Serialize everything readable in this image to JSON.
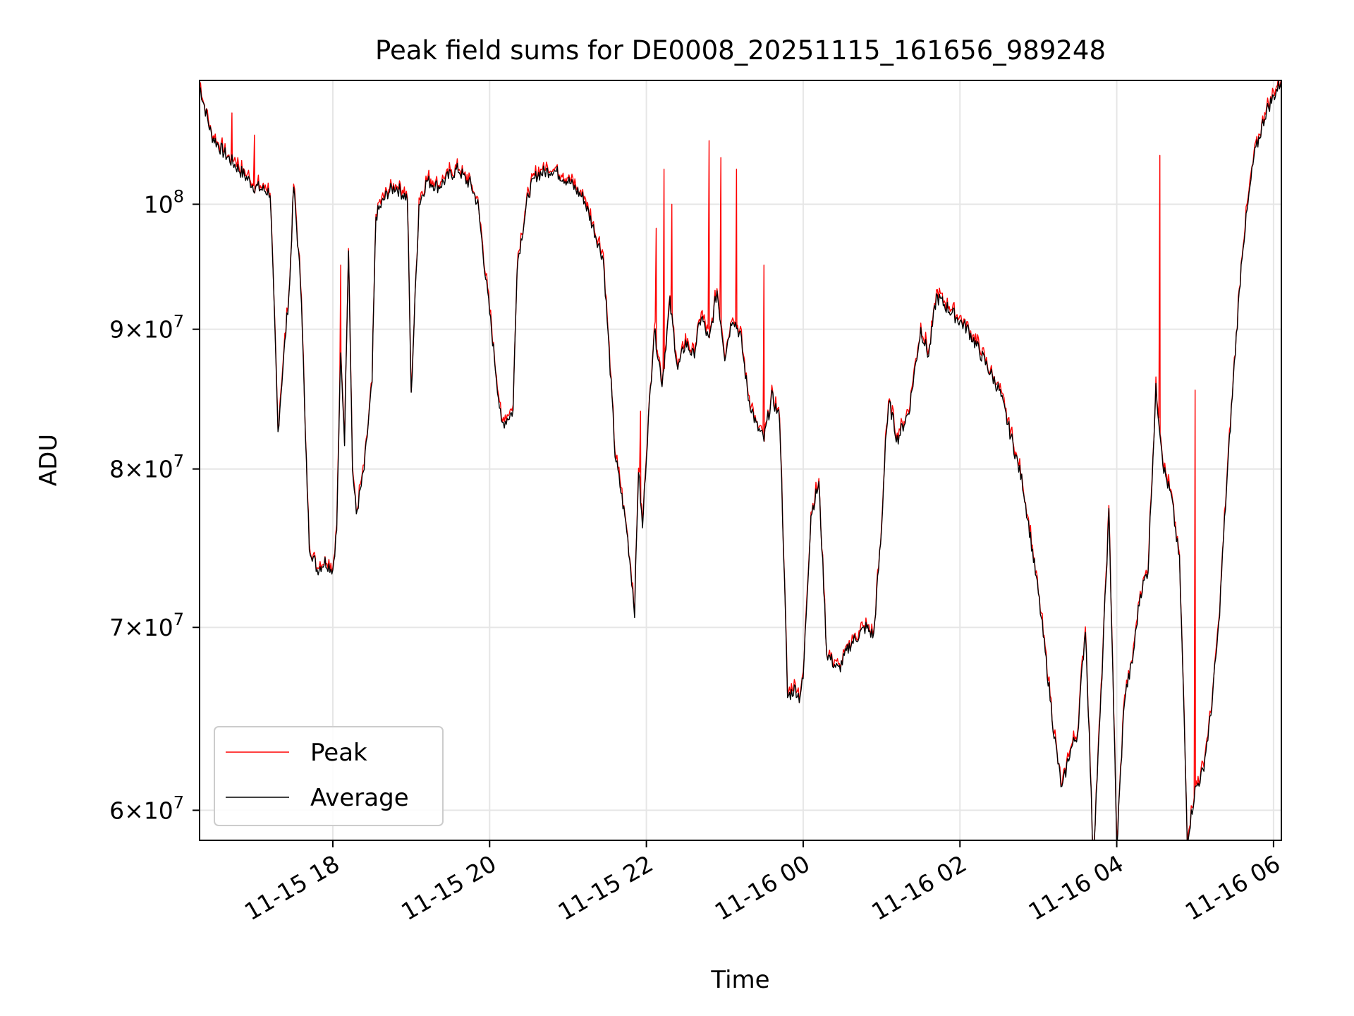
{
  "chart_data": {
    "type": "line",
    "title": "Peak field sums for DE0008_20251115_161656_989248",
    "xlabel": "Time",
    "ylabel": "ADU",
    "yscale": "log",
    "xlim_hours": [
      16.3,
      30.1
    ],
    "ylim": [
      58500000,
      111000000
    ],
    "x_ticks": [
      {
        "hours": 18,
        "label": "11-15 18"
      },
      {
        "hours": 20,
        "label": "11-15 20"
      },
      {
        "hours": 22,
        "label": "11-15 22"
      },
      {
        "hours": 24,
        "label": "11-16 00"
      },
      {
        "hours": 26,
        "label": "11-16 02"
      },
      {
        "hours": 28,
        "label": "11-16 04"
      },
      {
        "hours": 30,
        "label": "11-16 06"
      }
    ],
    "y_ticks": [
      {
        "value": 60000000,
        "coef": "6",
        "exp": "7"
      },
      {
        "value": 70000000,
        "coef": "7",
        "exp": "7"
      },
      {
        "value": 80000000,
        "coef": "8",
        "exp": "7"
      },
      {
        "value": 90000000,
        "coef": "9",
        "exp": "7"
      },
      {
        "value": 100000000,
        "coef": "",
        "exp": "8"
      }
    ],
    "grid": true,
    "legend_position": "lower-left",
    "series": [
      {
        "name": "Peak",
        "color": "#ff0000",
        "spikes": [
          {
            "hours": 16.71,
            "value": 108000000
          },
          {
            "hours": 17.0,
            "value": 106000000
          },
          {
            "hours": 18.1,
            "value": 95000000
          },
          {
            "hours": 21.93,
            "value": 84000000
          },
          {
            "hours": 22.12,
            "value": 98000000
          },
          {
            "hours": 22.23,
            "value": 103000000
          },
          {
            "hours": 22.32,
            "value": 100000000
          },
          {
            "hours": 22.8,
            "value": 105500000
          },
          {
            "hours": 22.95,
            "value": 104000000
          },
          {
            "hours": 23.15,
            "value": 103000000
          },
          {
            "hours": 23.5,
            "value": 95000000
          },
          {
            "hours": 28.55,
            "value": 104200000
          },
          {
            "hours": 29.0,
            "value": 85500000
          }
        ]
      },
      {
        "name": "Average",
        "color": "#000000",
        "x": [
          16.3,
          16.45,
          16.6,
          16.8,
          17.0,
          17.2,
          17.3,
          17.45,
          17.5,
          17.6,
          17.65,
          17.7,
          17.8,
          17.9,
          18.0,
          18.05,
          18.1,
          18.15,
          18.2,
          18.25,
          18.3,
          18.4,
          18.5,
          18.55,
          18.7,
          18.8,
          18.95,
          19.0,
          19.1,
          19.2,
          19.35,
          19.5,
          19.6,
          19.7,
          19.75,
          19.85,
          19.95,
          20.05,
          20.15,
          20.3,
          20.35,
          20.5,
          20.6,
          20.8,
          21.0,
          21.2,
          21.45,
          21.6,
          21.75,
          21.85,
          21.9,
          21.95,
          22.0,
          22.1,
          22.2,
          22.3,
          22.4,
          22.5,
          22.6,
          22.7,
          22.8,
          22.9,
          23.0,
          23.1,
          23.2,
          23.3,
          23.4,
          23.5,
          23.6,
          23.7,
          23.8,
          23.9,
          23.95,
          24.0,
          24.1,
          24.2,
          24.3,
          24.45,
          24.6,
          24.8,
          24.9,
          25.0,
          25.05,
          25.1,
          25.2,
          25.35,
          25.5,
          25.6,
          25.7,
          26.1,
          26.5,
          26.8,
          27.0,
          27.2,
          27.3,
          27.4,
          27.5,
          27.6,
          27.7,
          27.8,
          27.9,
          28.0,
          28.1,
          28.2,
          28.3,
          28.4,
          28.5,
          28.6,
          28.7,
          28.8,
          28.9,
          29.0,
          29.1,
          29.2,
          29.3,
          29.45,
          29.6,
          29.75,
          29.9,
          30.1
        ],
        "values": [
          110500000,
          106000000,
          104500000,
          103000000,
          101500000,
          101000000,
          82500000,
          93500000,
          101500000,
          92500000,
          82000000,
          75000000,
          73500000,
          74000000,
          73500000,
          76000000,
          88000000,
          82000000,
          96500000,
          80000000,
          77000000,
          80000000,
          86000000,
          99000000,
          101000000,
          101500000,
          100500000,
          85000000,
          100000000,
          102000000,
          101500000,
          102500000,
          103000000,
          102000000,
          101800000,
          100000000,
          94000000,
          88500000,
          83000000,
          84000000,
          95000000,
          101000000,
          102500000,
          103000000,
          102000000,
          100500000,
          95500000,
          81000000,
          76000000,
          71000000,
          80000000,
          76000000,
          81000000,
          90000000,
          86000000,
          92000000,
          87000000,
          89000000,
          88000000,
          91000000,
          89000000,
          93000000,
          88000000,
          91000000,
          89500000,
          85000000,
          83000000,
          82000000,
          85000000,
          83500000,
          66000000,
          66500000,
          66000000,
          67000000,
          77000000,
          79000000,
          68500000,
          67500000,
          69000000,
          70000000,
          69500000,
          76000000,
          82000000,
          84500000,
          82000000,
          84000000,
          90000000,
          88000000,
          92500000,
          90000000,
          85500000,
          79000000,
          72000000,
          64000000,
          61000000,
          63000000,
          64000000,
          70000000,
          57500000,
          66000000,
          77000000,
          58000000,
          66000000,
          68000000,
          72000000,
          73500000,
          85500000,
          80000000,
          78000000,
          74000000,
          58500000,
          61000000,
          62000000,
          65000000,
          70000000,
          83000000,
          96000000,
          104000000,
          108000000,
          111000000
        ]
      }
    ]
  }
}
